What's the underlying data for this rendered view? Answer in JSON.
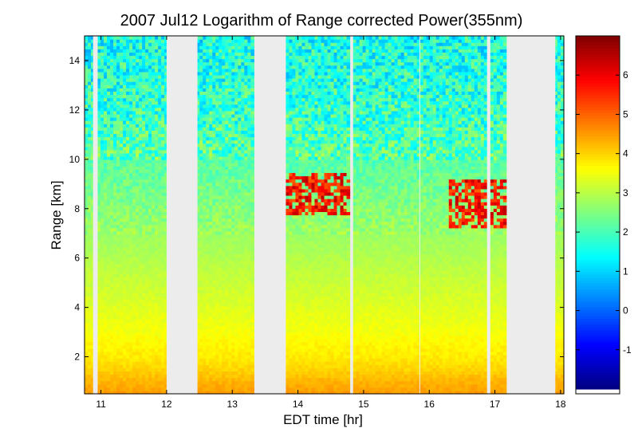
{
  "chart_data": {
    "type": "heatmap",
    "title": "2007 Jul12  Logarithm of Range corrected Power(355nm)",
    "xlabel": "EDT time [hr]",
    "ylabel": "Range [km]",
    "xlim": [
      10.75,
      18.05
    ],
    "ylim": [
      0.5,
      15
    ],
    "xticks": [
      "11",
      "12",
      "13",
      "14",
      "15",
      "16",
      "17",
      "18"
    ],
    "yticks": [
      "2",
      "4",
      "6",
      "8",
      "10",
      "12",
      "14"
    ],
    "colorbar": {
      "range": [
        -2,
        7
      ],
      "ticks": [
        "-1",
        "0",
        "1",
        "2",
        "3",
        "4",
        "5",
        "6"
      ],
      "colormap": "jet"
    },
    "data_gaps_hr": [
      [
        10.88,
        10.95
      ],
      [
        12.0,
        12.47
      ],
      [
        13.35,
        13.8
      ],
      [
        14.8,
        14.84
      ],
      [
        15.85,
        15.86
      ],
      [
        16.88,
        16.91
      ],
      [
        17.18,
        17.92
      ]
    ],
    "cloud_layers": [
      {
        "time_hr": [
          13.8,
          14.8
        ],
        "range_km": [
          7.8,
          9.5
        ],
        "value": 6.5
      },
      {
        "time_hr": [
          16.3,
          17.18
        ],
        "range_km": [
          7.2,
          9.2
        ],
        "value": 6.5
      }
    ],
    "profile": {
      "range_km": [
        0.5,
        1.0,
        1.5,
        2.0,
        2.5,
        3.0,
        4.0,
        5.0,
        6.0,
        7.0,
        8.0,
        9.0,
        10.0,
        11.0,
        12.0,
        13.0,
        14.0,
        15.0
      ],
      "value": [
        4.5,
        4.3,
        4.0,
        3.8,
        3.7,
        3.55,
        3.35,
        3.15,
        2.95,
        2.75,
        2.55,
        2.35,
        2.15,
        2.0,
        1.85,
        1.7,
        1.6,
        1.5
      ]
    }
  }
}
